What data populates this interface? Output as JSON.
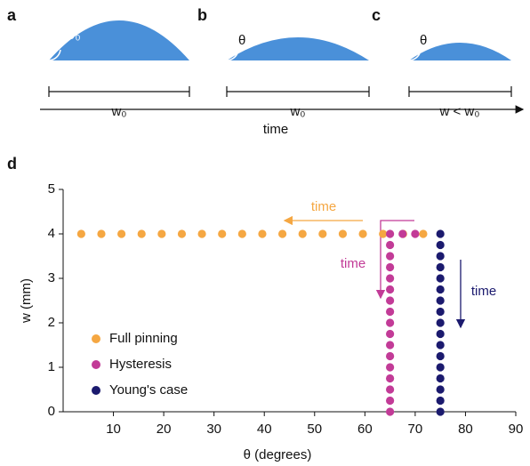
{
  "diagram": {
    "panels": [
      {
        "letter": "a",
        "angle": "θ₀",
        "width": "w₀"
      },
      {
        "letter": "b",
        "angle": "θ",
        "width": "w₀"
      },
      {
        "letter": "c",
        "angle": "θ",
        "width": "w < w₀"
      }
    ],
    "axis_label": "time"
  },
  "chart_data": {
    "type": "scatter",
    "panel": "d",
    "xlabel": "θ (degrees)",
    "ylabel": "w (mm)",
    "xlim": [
      0,
      90
    ],
    "xticks": [
      10,
      20,
      30,
      40,
      50,
      60,
      70,
      80,
      90
    ],
    "ylim": [
      0,
      5
    ],
    "yticks": [
      0,
      1,
      2,
      3,
      4,
      5
    ],
    "legend": "lower left",
    "series": [
      {
        "name": "Full pinning",
        "color": "#f5a742",
        "x": [
          3.6,
          7.6,
          11.6,
          15.6,
          19.6,
          23.6,
          27.6,
          31.6,
          35.6,
          39.6,
          43.6,
          47.6,
          51.6,
          55.6,
          59.6,
          63.6,
          67.6,
          71.6
        ],
        "values": [
          4,
          4,
          4,
          4,
          4,
          4,
          4,
          4,
          4,
          4,
          4,
          4,
          4,
          4,
          4,
          4,
          4,
          4
        ]
      },
      {
        "name": "Hysteresis",
        "color": "#c23b97",
        "x": [
          70,
          67.5,
          65,
          65,
          65,
          65,
          65,
          65,
          65,
          65,
          65,
          65,
          65,
          65,
          65,
          65,
          65,
          65,
          65
        ],
        "values": [
          4,
          4,
          4,
          3.75,
          3.5,
          3.25,
          3,
          2.75,
          2.5,
          2.25,
          2,
          1.75,
          1.5,
          1.25,
          1,
          0.75,
          0.5,
          0.25,
          0
        ]
      },
      {
        "name": "Young's case",
        "color": "#1b1a6e",
        "x": [
          75,
          75,
          75,
          75,
          75,
          75,
          75,
          75,
          75,
          75,
          75,
          75,
          75,
          75,
          75,
          75,
          75
        ],
        "values": [
          4,
          3.75,
          3.5,
          3.25,
          3,
          2.75,
          2.5,
          2.25,
          2,
          1.75,
          1.5,
          1.25,
          1,
          0.75,
          0.5,
          0.25,
          0
        ]
      }
    ],
    "annotations": [
      {
        "text": "time",
        "color": "#f5a742"
      },
      {
        "text": "time",
        "color": "#c23b97"
      },
      {
        "text": "time",
        "color": "#1b1a6e"
      }
    ]
  }
}
